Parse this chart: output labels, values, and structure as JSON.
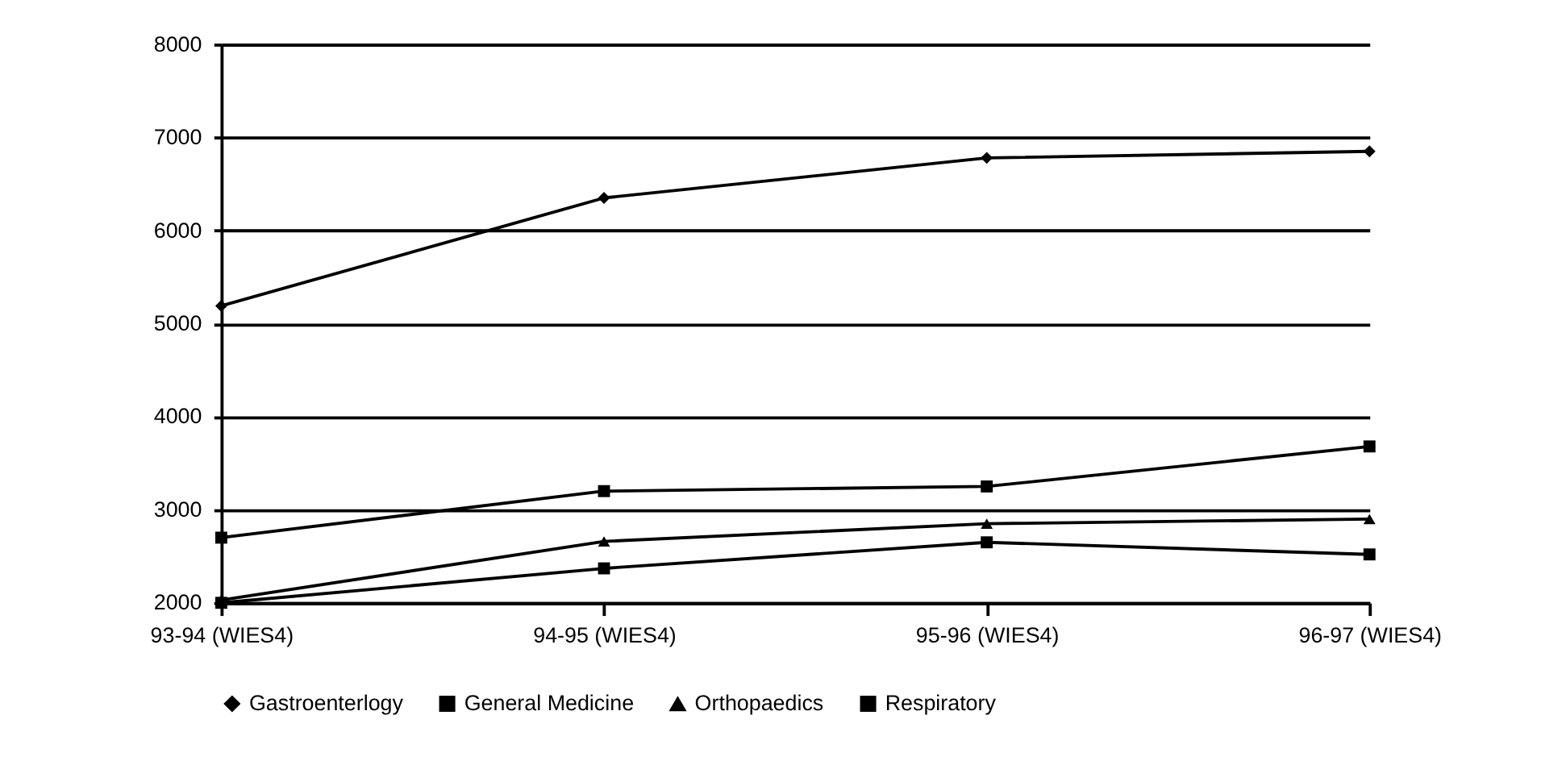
{
  "chart_data": {
    "type": "line",
    "categories": [
      "93-94 (WIES4)",
      "94-95 (WIES4)",
      "95-96 (WIES4)",
      "96-97 (WIES4)"
    ],
    "series": [
      {
        "name": "Gastroenterlogy",
        "color": "#000000",
        "marker": "diamond",
        "values": [
          5190,
          6350,
          6780,
          6850
        ]
      },
      {
        "name": "General Medicine",
        "color": "#000000",
        "marker": "square",
        "values": [
          2700,
          3200,
          3250,
          3680
        ]
      },
      {
        "name": "Orthopaedics",
        "color": "#000000",
        "marker": "triangle",
        "values": [
          2030,
          2660,
          2850,
          2900
        ]
      },
      {
        "name": "Respiratory",
        "color": "#000000",
        "marker": "square",
        "values": [
          2000,
          2370,
          2650,
          2520
        ]
      }
    ],
    "ylim": [
      2000,
      8000
    ],
    "yticks": [
      2000,
      3000,
      4000,
      5000,
      6000,
      7000,
      8000
    ],
    "grid": "y",
    "legend": "bottom",
    "line_style": "solid"
  }
}
